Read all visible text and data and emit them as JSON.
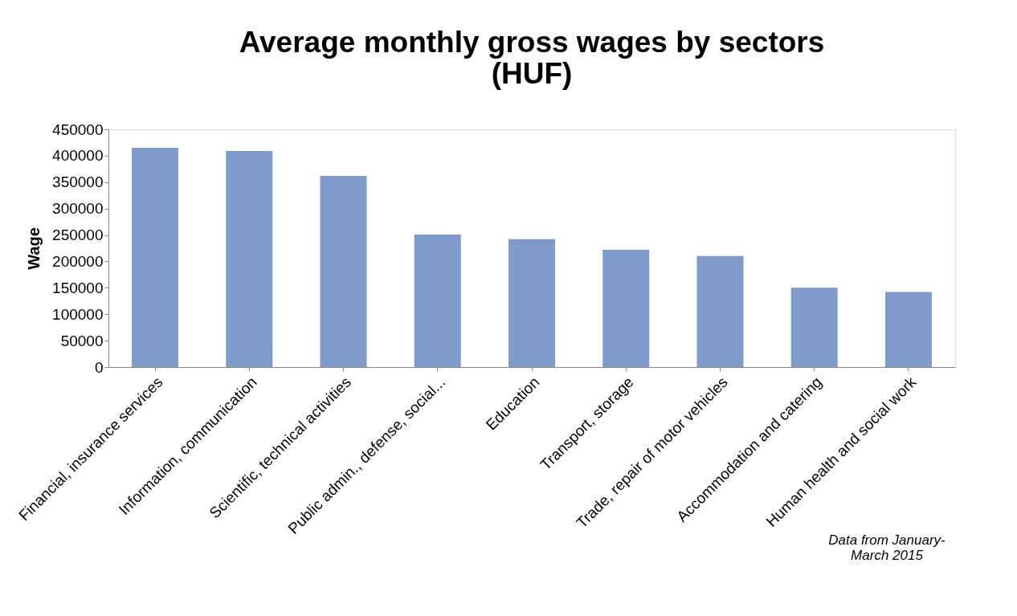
{
  "chart_data": {
    "type": "bar",
    "title": "Average monthly gross wages by sectors\n(HUF)",
    "ylabel": "Wage",
    "categories": [
      "Financial, insurance services",
      "Information, communication",
      "Scientific, technical activities",
      "Public admin., defense, social...",
      "Education",
      "Transport, storage",
      "Trade, repair of motor vehicles",
      "Accommodation and catering",
      "Human health and social work"
    ],
    "values": [
      415000,
      409000,
      362000,
      251000,
      242000,
      222000,
      210000,
      150000,
      142000
    ],
    "color": "#7f9bcb",
    "ylim": [
      0,
      450000
    ],
    "yticks": [
      0,
      50000,
      100000,
      150000,
      200000,
      250000,
      300000,
      350000,
      400000,
      450000
    ],
    "grid": false,
    "annotations": [
      "Data from January-\nMarch  2015"
    ]
  }
}
